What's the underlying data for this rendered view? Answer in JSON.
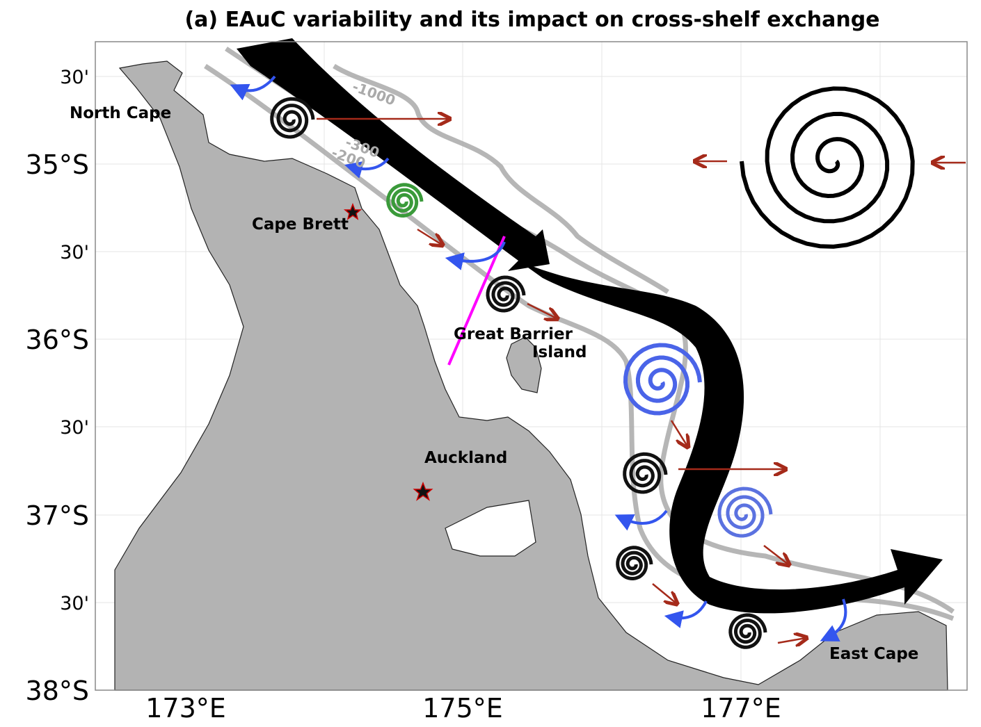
{
  "title": "(a) EAuC variability and its impact on cross-shelf exchange",
  "lat_ticks": [
    "30'",
    "35°S",
    "30'",
    "36°S",
    "30'",
    "37°S",
    "30'",
    "38°S"
  ],
  "lon_ticks": [
    "173°E",
    "175°E",
    "177°E"
  ],
  "places": {
    "north_cape": "North Cape",
    "cape_brett": "Cape Brett",
    "great_barrier": [
      "Great Barrier",
      "Island"
    ],
    "auckland": "Auckland",
    "east_cape": "East Cape"
  },
  "contours": [
    "-1000",
    "-300",
    "-200"
  ]
}
